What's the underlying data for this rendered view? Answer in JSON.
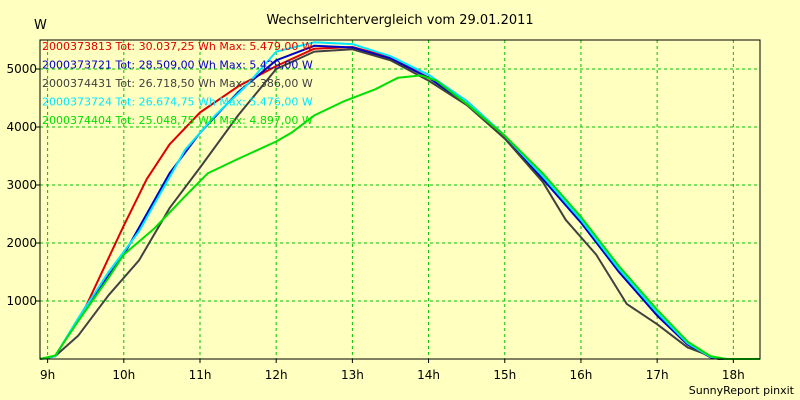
{
  "chart_data": {
    "type": "line",
    "title": "Wechselrichtervergleich vom 29.01.2011",
    "ylabel": "W",
    "xlabel": "",
    "xlim": [
      8.9,
      18.35
    ],
    "ylim": [
      0,
      5500
    ],
    "grid": true,
    "x_ticks": [
      9,
      10,
      11,
      12,
      13,
      14,
      15,
      16,
      17,
      18
    ],
    "x_tick_labels": [
      "9h",
      "10h",
      "11h",
      "12h",
      "13h",
      "14h",
      "15h",
      "16h",
      "17h",
      "18h"
    ],
    "y_ticks": [
      1000,
      2000,
      3000,
      4000,
      5000
    ],
    "y_tick_labels": [
      "1000",
      "2000",
      "3000",
      "4000",
      "5000"
    ],
    "legend_position": "top-left",
    "series": [
      {
        "name": "2000373813",
        "label": "2000373813 Tot: 30.037,25 Wh Max: 5.479,00 W",
        "color": "#e00000",
        "points": [
          [
            8.9,
            0
          ],
          [
            9.1,
            50
          ],
          [
            9.5,
            900
          ],
          [
            10,
            2300
          ],
          [
            10.3,
            3100
          ],
          [
            10.6,
            3700
          ],
          [
            11,
            4250
          ],
          [
            11.5,
            4700
          ],
          [
            12,
            5050
          ],
          [
            12.5,
            5350
          ],
          [
            13,
            5380
          ],
          [
            13.5,
            5200
          ],
          [
            14,
            4900
          ],
          [
            14.5,
            4450
          ],
          [
            15,
            3850
          ],
          [
            15.5,
            3150
          ],
          [
            16,
            2400
          ],
          [
            16.5,
            1500
          ],
          [
            17,
            750
          ],
          [
            17.4,
            250
          ],
          [
            17.7,
            30
          ],
          [
            17.9,
            0
          ],
          [
            18.35,
            0
          ]
        ]
      },
      {
        "name": "2000373721",
        "label": "2000373721 Tot: 28.509,00 Wh Max: 5.429,00 W",
        "color": "#0000c8",
        "points": [
          [
            8.9,
            0
          ],
          [
            9.1,
            50
          ],
          [
            9.5,
            900
          ],
          [
            10,
            1800
          ],
          [
            10.3,
            2500
          ],
          [
            10.6,
            3200
          ],
          [
            11,
            3900
          ],
          [
            11.5,
            4600
          ],
          [
            12,
            5150
          ],
          [
            12.5,
            5400
          ],
          [
            13,
            5370
          ],
          [
            13.5,
            5180
          ],
          [
            14,
            4850
          ],
          [
            14.5,
            4400
          ],
          [
            15,
            3800
          ],
          [
            15.5,
            3100
          ],
          [
            16,
            2350
          ],
          [
            16.5,
            1500
          ],
          [
            17,
            750
          ],
          [
            17.4,
            250
          ],
          [
            17.7,
            30
          ],
          [
            17.9,
            0
          ],
          [
            18.35,
            0
          ]
        ]
      },
      {
        "name": "2000374431",
        "label": "2000374431 Tot: 26.718,50 Wh Max: 5.386,00 W",
        "color": "#404040",
        "points": [
          [
            8.9,
            0
          ],
          [
            9.1,
            50
          ],
          [
            9.4,
            400
          ],
          [
            9.8,
            1100
          ],
          [
            10.2,
            1700
          ],
          [
            10.6,
            2600
          ],
          [
            11,
            3300
          ],
          [
            11.5,
            4200
          ],
          [
            12,
            5000
          ],
          [
            12.5,
            5300
          ],
          [
            13,
            5340
          ],
          [
            13.5,
            5150
          ],
          [
            14,
            4800
          ],
          [
            14.5,
            4380
          ],
          [
            15,
            3800
          ],
          [
            15.5,
            3050
          ],
          [
            15.8,
            2400
          ],
          [
            16.2,
            1800
          ],
          [
            16.6,
            950
          ],
          [
            17,
            600
          ],
          [
            17.4,
            200
          ],
          [
            17.8,
            0
          ],
          [
            18.35,
            0
          ]
        ]
      },
      {
        "name": "2000373724",
        "label": "2000373724 Tot: 26.674,75 Wh Max: 5.476,00 W",
        "color": "#00e8ff",
        "points": [
          [
            8.9,
            0
          ],
          [
            9.1,
            50
          ],
          [
            9.4,
            700
          ],
          [
            9.8,
            1500
          ],
          [
            10.2,
            2200
          ],
          [
            10.5,
            2900
          ],
          [
            10.8,
            3600
          ],
          [
            11.2,
            4200
          ],
          [
            11.6,
            4700
          ],
          [
            12,
            5300
          ],
          [
            12.5,
            5460
          ],
          [
            13,
            5430
          ],
          [
            13.5,
            5220
          ],
          [
            14,
            4900
          ],
          [
            14.5,
            4450
          ],
          [
            15,
            3850
          ],
          [
            15.5,
            3150
          ],
          [
            16,
            2400
          ],
          [
            16.5,
            1550
          ],
          [
            17,
            800
          ],
          [
            17.4,
            270
          ],
          [
            17.7,
            40
          ],
          [
            17.9,
            0
          ],
          [
            18.35,
            0
          ]
        ]
      },
      {
        "name": "2000374404",
        "label": "2000374404 Tot: 25.048,75 Wh Max: 4.897,00 W",
        "color": "#00e000",
        "points": [
          [
            8.9,
            0
          ],
          [
            9.1,
            60
          ],
          [
            9.4,
            650
          ],
          [
            9.8,
            1400
          ],
          [
            10,
            1800
          ],
          [
            10.4,
            2250
          ],
          [
            10.8,
            2800
          ],
          [
            11.1,
            3200
          ],
          [
            11.5,
            3450
          ],
          [
            12,
            3750
          ],
          [
            12.2,
            3900
          ],
          [
            12.5,
            4200
          ],
          [
            12.9,
            4450
          ],
          [
            13.3,
            4650
          ],
          [
            13.6,
            4850
          ],
          [
            13.9,
            4890
          ],
          [
            14.1,
            4800
          ],
          [
            14.5,
            4400
          ],
          [
            15,
            3850
          ],
          [
            15.5,
            3200
          ],
          [
            16,
            2450
          ],
          [
            16.5,
            1600
          ],
          [
            17,
            850
          ],
          [
            17.4,
            300
          ],
          [
            17.7,
            50
          ],
          [
            17.9,
            0
          ],
          [
            18.35,
            0
          ]
        ]
      }
    ]
  },
  "footer": "SunnyReport pinxit"
}
